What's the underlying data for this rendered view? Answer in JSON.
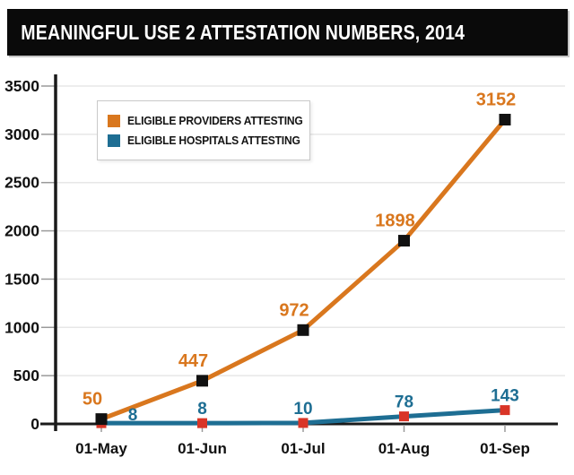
{
  "title": "MEANINGFUL USE 2 ATTESTATION NUMBERS, 2014",
  "chart_data": {
    "type": "line",
    "x": [
      "01-May",
      "01-Jun",
      "01-Jul",
      "01-Aug",
      "01-Sep"
    ],
    "series": [
      {
        "name": "ELIGIBLE PROVIDERS ATTESTING",
        "values": [
          50,
          447,
          972,
          1898,
          3152
        ],
        "line_color": "#D9771E",
        "marker_color": "#111111",
        "label_color": "#D9771E"
      },
      {
        "name": "ELIGIBLE HOSPITALS ATTESTING",
        "values": [
          8,
          8,
          10,
          78,
          143
        ],
        "line_color": "#1E6E93",
        "marker_color": "#D93527",
        "label_color": "#1E6E93"
      }
    ],
    "ylim": [
      0,
      3500
    ],
    "yticks": [
      0,
      500,
      1000,
      1500,
      2000,
      2500,
      3000,
      3500
    ],
    "xlabel": "",
    "ylabel": "",
    "grid": true,
    "legend_position": "top-left",
    "data_labels": true
  },
  "colors": {
    "banner_bg": "#0A0A0A",
    "banner_text": "#FFFFFF",
    "grid": "#E7E7E7",
    "axis": "#1A1A1A",
    "tick": "#9A9A9A",
    "tick_label": "#111111"
  }
}
